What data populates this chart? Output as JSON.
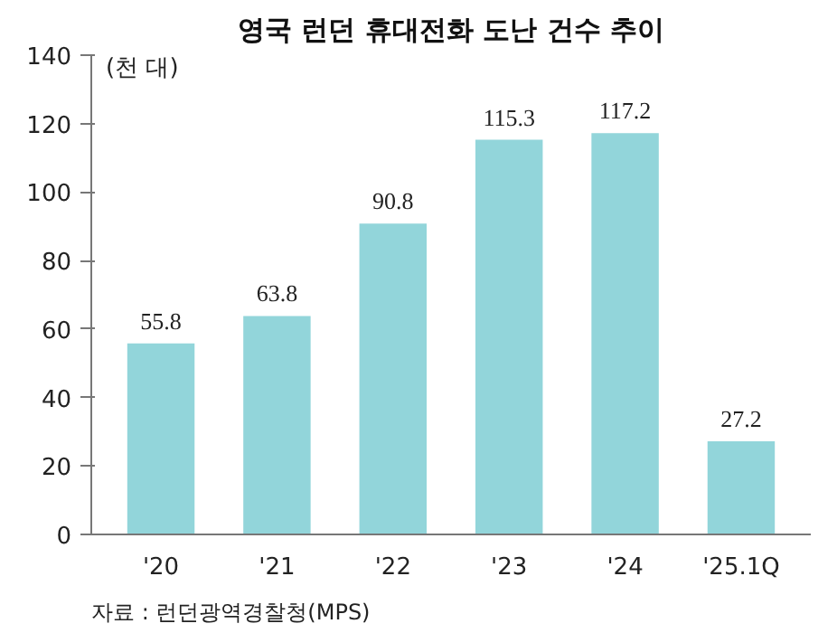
{
  "chart_data": {
    "type": "bar",
    "title": "영국 런던 휴대전화 도난 건수 추이",
    "ylabel": "(천 대)",
    "categories": [
      "'20",
      "'21",
      "'22",
      "'23",
      "'24",
      "'25.1Q"
    ],
    "values": [
      55.8,
      63.8,
      90.8,
      115.3,
      117.2,
      27.2
    ],
    "color": "#92d5da",
    "ylim": [
      0,
      140
    ],
    "yticks": [
      0,
      20,
      40,
      60,
      80,
      100,
      120,
      140
    ],
    "grid": false,
    "data_labels": true,
    "annotations": [
      "자료 : 런던광역경찰청(MPS)"
    ]
  }
}
